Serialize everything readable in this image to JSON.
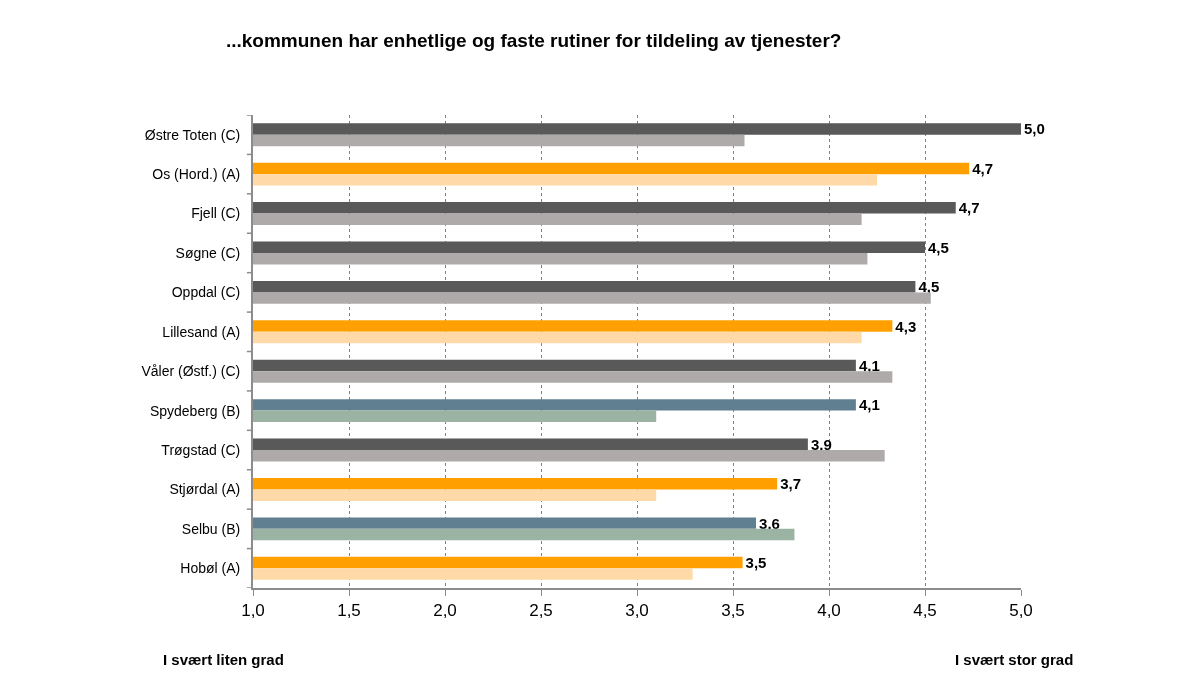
{
  "chart_data": {
    "type": "bar",
    "orientation": "horizontal",
    "title": "...kommunen har enhetlige og faste rutiner for tildeling av tjenester?",
    "categories": [
      "Østre Toten (C)",
      "Os (Hord.) (A)",
      "Fjell (C)",
      "Søgne (C)",
      "Oppdal (C)",
      "Lillesand (A)",
      "Våler (Østf.) (C)",
      "Spydeberg (B)",
      "Trøgstad (C)",
      "Stjørdal (A)",
      "Selbu (B)",
      "Hobøl (A)"
    ],
    "series": [
      {
        "values": [
          5.0,
          4.73,
          4.66,
          4.5,
          4.45,
          4.33,
          4.14,
          4.14,
          3.89,
          3.73,
          3.62,
          3.55
        ],
        "value_labels": [
          "5,0",
          "4,7",
          "4,7",
          "4,5",
          "4,5",
          "4,3",
          "4,1",
          "4,1",
          "3,9",
          "3,7",
          "3,6",
          "3,5"
        ],
        "colors": [
          "#595959",
          "#ffa000",
          "#595959",
          "#595959",
          "#595959",
          "#ffa000",
          "#595959",
          "#607f90",
          "#595959",
          "#ffa000",
          "#607f90",
          "#ffa000"
        ]
      },
      {
        "values": [
          3.56,
          4.25,
          4.17,
          4.2,
          4.53,
          4.17,
          4.33,
          3.1,
          4.29,
          3.1,
          3.82,
          3.29
        ],
        "colors": [
          "#aeaaaa",
          "#ffdaa8",
          "#aeaaaa",
          "#aeaaaa",
          "#aeaaaa",
          "#ffdaa8",
          "#aeaaaa",
          "#9bb3a3",
          "#aeaaaa",
          "#ffdaa8",
          "#9bb3a3",
          "#ffdaa8"
        ]
      }
    ],
    "xlim": [
      1.0,
      5.0
    ],
    "xticks": [
      {
        "value": 1.0,
        "label": "1,0"
      },
      {
        "value": 1.5,
        "label": "1,5"
      },
      {
        "value": 2.0,
        "label": "2,0"
      },
      {
        "value": 2.5,
        "label": "2,5"
      },
      {
        "value": 3.0,
        "label": "3,0"
      },
      {
        "value": 3.5,
        "label": "3,5"
      },
      {
        "value": 4.0,
        "label": "4,0"
      },
      {
        "value": 4.5,
        "label": "4,5"
      },
      {
        "value": 5.0,
        "label": "5,0"
      }
    ],
    "grid": "x",
    "annotations": [
      "I svært liten grad",
      "I svært stor grad"
    ]
  }
}
